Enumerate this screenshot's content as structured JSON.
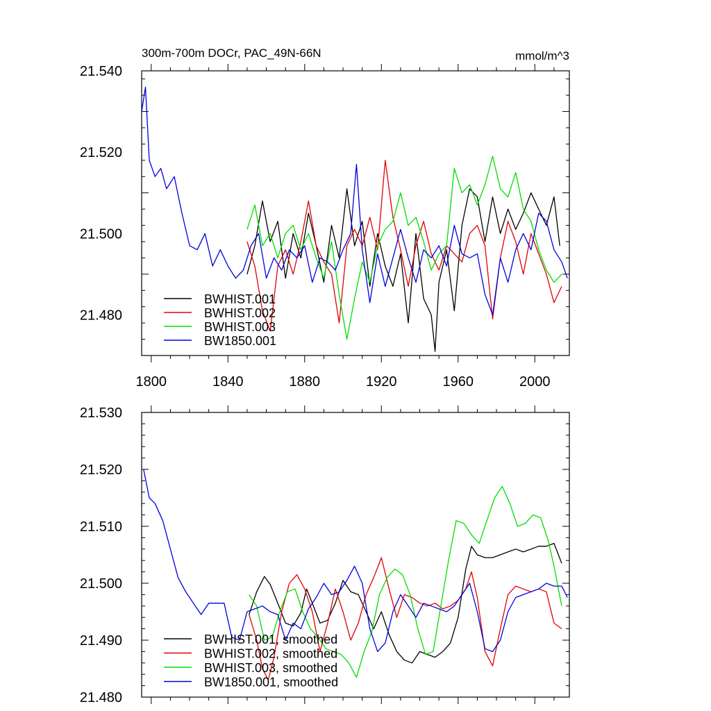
{
  "title_left": "300m-700m DOCr, PAC_49N-66N",
  "title_right": "mmol/m^3",
  "colors": {
    "black": "#000000",
    "red": "#e00000",
    "green": "#00dd00",
    "blue": "#0000dd"
  },
  "chart_data": [
    {
      "type": "line",
      "title": "300m-700m DOCr, PAC_49N-66N",
      "units": "mmol/m^3",
      "xlim": [
        1795,
        2018
      ],
      "ylim": [
        21.47,
        21.54
      ],
      "xticks": [
        "1800",
        "1840",
        "1880",
        "1920",
        "1960",
        "2000"
      ],
      "yticks": [
        "21.480",
        "21.500",
        "21.520",
        "21.540"
      ],
      "legend_position": "bottom-left",
      "series": [
        {
          "name": "BWHIST.001",
          "color": "#000000",
          "x": [
            1850,
            1854,
            1858,
            1862,
            1866,
            1870,
            1874,
            1878,
            1882,
            1886,
            1890,
            1894,
            1898,
            1902,
            1906,
            1910,
            1914,
            1918,
            1922,
            1926,
            1930,
            1934,
            1938,
            1942,
            1946,
            1948,
            1950,
            1954,
            1958,
            1962,
            1966,
            1970,
            1974,
            1978,
            1982,
            1986,
            1990,
            1994,
            1998,
            2002,
            2006,
            2010,
            2013
          ],
          "y": [
            21.49,
            21.497,
            21.508,
            21.498,
            21.503,
            21.489,
            21.5,
            21.494,
            21.505,
            21.497,
            21.488,
            21.502,
            21.494,
            21.511,
            21.497,
            21.503,
            21.487,
            21.5,
            21.492,
            21.487,
            21.495,
            21.478,
            21.5,
            21.484,
            21.48,
            21.471,
            21.488,
            21.496,
            21.481,
            21.502,
            21.511,
            21.509,
            21.498,
            21.509,
            21.5,
            21.506,
            21.501,
            21.505,
            21.51,
            21.506,
            21.502,
            21.509,
            21.497
          ]
        },
        {
          "name": "BWHIST.002",
          "color": "#e00000",
          "x": [
            1850,
            1854,
            1858,
            1862,
            1866,
            1870,
            1874,
            1878,
            1882,
            1886,
            1890,
            1894,
            1898,
            1902,
            1906,
            1910,
            1914,
            1918,
            1922,
            1926,
            1930,
            1934,
            1938,
            1942,
            1946,
            1950,
            1954,
            1958,
            1962,
            1966,
            1970,
            1974,
            1978,
            1982,
            1986,
            1990,
            1994,
            1998,
            2002,
            2006,
            2010,
            2014
          ],
          "y": [
            21.498,
            21.492,
            21.481,
            21.476,
            21.492,
            21.496,
            21.49,
            21.498,
            21.508,
            21.497,
            21.493,
            21.49,
            21.478,
            21.497,
            21.501,
            21.497,
            21.504,
            21.496,
            21.518,
            21.504,
            21.496,
            21.487,
            21.497,
            21.503,
            21.495,
            21.491,
            21.497,
            21.495,
            21.493,
            21.5,
            21.502,
            21.497,
            21.479,
            21.494,
            21.503,
            21.498,
            21.49,
            21.5,
            21.495,
            21.49,
            21.483,
            21.487
          ]
        },
        {
          "name": "BWHIST.003",
          "color": "#00dd00",
          "x": [
            1850,
            1854,
            1858,
            1862,
            1866,
            1870,
            1874,
            1878,
            1882,
            1886,
            1890,
            1894,
            1898,
            1902,
            1906,
            1910,
            1914,
            1918,
            1922,
            1926,
            1930,
            1934,
            1938,
            1942,
            1946,
            1950,
            1954,
            1958,
            1962,
            1966,
            1970,
            1974,
            1978,
            1982,
            1986,
            1990,
            1994,
            1998,
            2002,
            2006,
            2010,
            2014
          ],
          "y": [
            21.501,
            21.507,
            21.497,
            21.5,
            21.494,
            21.5,
            21.502,
            21.496,
            21.5,
            21.494,
            21.489,
            21.498,
            21.485,
            21.474,
            21.484,
            21.493,
            21.488,
            21.497,
            21.501,
            21.503,
            21.51,
            21.502,
            21.504,
            21.498,
            21.491,
            21.495,
            21.497,
            21.516,
            21.51,
            21.512,
            21.507,
            21.512,
            21.519,
            21.511,
            21.509,
            21.515,
            21.506,
            21.503,
            21.496,
            21.491,
            21.488,
            21.49
          ]
        },
        {
          "name": "BW1850.001",
          "color": "#0000dd",
          "x": [
            1795,
            1797,
            1799,
            1802,
            1805,
            1808,
            1812,
            1816,
            1820,
            1824,
            1828,
            1832,
            1836,
            1840,
            1844,
            1848,
            1852,
            1856,
            1860,
            1864,
            1868,
            1872,
            1876,
            1880,
            1884,
            1888,
            1892,
            1896,
            1900,
            1904,
            1907,
            1910,
            1914,
            1918,
            1922,
            1926,
            1930,
            1934,
            1938,
            1942,
            1946,
            1950,
            1954,
            1958,
            1962,
            1966,
            1970,
            1974,
            1978,
            1982,
            1986,
            1990,
            1994,
            1998,
            2002,
            2006,
            2010,
            2014,
            2017
          ],
          "y": [
            21.53,
            21.536,
            21.518,
            21.514,
            21.516,
            21.511,
            21.514,
            21.505,
            21.497,
            21.496,
            21.5,
            21.492,
            21.496,
            21.492,
            21.489,
            21.491,
            21.497,
            21.5,
            21.489,
            21.494,
            21.491,
            21.496,
            21.494,
            21.497,
            21.488,
            21.494,
            21.493,
            21.491,
            21.496,
            21.5,
            21.517,
            21.496,
            21.483,
            21.495,
            21.487,
            21.494,
            21.501,
            21.494,
            21.488,
            21.496,
            21.494,
            21.497,
            21.492,
            21.502,
            21.495,
            21.494,
            21.495,
            21.485,
            21.48,
            21.494,
            21.488,
            21.496,
            21.5,
            21.496,
            21.505,
            21.503,
            21.496,
            21.493,
            21.489
          ]
        }
      ]
    },
    {
      "type": "line",
      "xlim": [
        1795,
        2018
      ],
      "ylim": [
        21.48,
        21.53
      ],
      "yticks": [
        "21.480",
        "21.490",
        "21.500",
        "21.510",
        "21.520",
        "21.530"
      ],
      "legend_position": "bottom-left",
      "series": [
        {
          "name": "BWHIST.001, smoothed",
          "color": "#000000",
          "x": [
            1851,
            1855,
            1859,
            1862,
            1866,
            1870,
            1874,
            1878,
            1881,
            1884,
            1888,
            1892,
            1896,
            1900,
            1904,
            1908,
            1912,
            1916,
            1920,
            1924,
            1928,
            1932,
            1936,
            1940,
            1944,
            1948,
            1952,
            1956,
            1960,
            1964,
            1967,
            1970,
            1974,
            1978,
            1982,
            1986,
            1990,
            1994,
            1998,
            2002,
            2006,
            2010,
            2014
          ],
          "y": [
            21.4945,
            21.4985,
            21.5012,
            21.4998,
            21.4965,
            21.493,
            21.4925,
            21.4948,
            21.499,
            21.4965,
            21.493,
            21.4935,
            21.4965,
            21.5005,
            21.4985,
            21.498,
            21.495,
            21.492,
            21.495,
            21.491,
            21.488,
            21.4865,
            21.486,
            21.488,
            21.4875,
            21.487,
            21.488,
            21.4895,
            21.494,
            21.5025,
            21.5065,
            21.505,
            21.5045,
            21.5045,
            21.505,
            21.5055,
            21.506,
            21.5055,
            21.506,
            21.5065,
            21.5065,
            21.507,
            21.5035
          ]
        },
        {
          "name": "BWHIST.002, smoothed",
          "color": "#e00000",
          "x": [
            1851,
            1855,
            1858,
            1861,
            1864,
            1868,
            1872,
            1876,
            1880,
            1884,
            1888,
            1892,
            1896,
            1900,
            1904,
            1908,
            1912,
            1916,
            1920,
            1924,
            1928,
            1932,
            1936,
            1940,
            1944,
            1948,
            1952,
            1956,
            1960,
            1964,
            1967,
            1970,
            1974,
            1978,
            1982,
            1986,
            1990,
            1994,
            1998,
            2002,
            2006,
            2010,
            2014
          ],
          "y": [
            21.4945,
            21.49,
            21.485,
            21.483,
            21.487,
            21.495,
            21.5,
            21.5015,
            21.499,
            21.495,
            21.488,
            21.493,
            21.499,
            21.495,
            21.49,
            21.493,
            21.498,
            21.501,
            21.5045,
            21.499,
            21.494,
            21.498,
            21.4975,
            21.4965,
            21.496,
            21.4965,
            21.4955,
            21.496,
            21.497,
            21.499,
            21.502,
            21.4975,
            21.488,
            21.4855,
            21.492,
            21.498,
            21.4995,
            21.499,
            21.4985,
            21.499,
            21.4985,
            21.493,
            21.492
          ]
        },
        {
          "name": "BWHIST.003, smoothed",
          "color": "#00dd00",
          "x": [
            1851,
            1855,
            1859,
            1863,
            1867,
            1871,
            1875,
            1879,
            1883,
            1887,
            1891,
            1895,
            1899,
            1903,
            1907,
            1911,
            1915,
            1919,
            1923,
            1927,
            1931,
            1935,
            1939,
            1943,
            1947,
            1951,
            1955,
            1959,
            1963,
            1967,
            1971,
            1975,
            1979,
            1983,
            1987,
            1991,
            1995,
            1999,
            2003,
            2007,
            2010,
            2014
          ],
          "y": [
            21.498,
            21.496,
            21.49,
            21.4905,
            21.495,
            21.4985,
            21.499,
            21.495,
            21.492,
            21.4905,
            21.4885,
            21.488,
            21.4875,
            21.486,
            21.4835,
            21.488,
            21.4915,
            21.498,
            21.501,
            21.5025,
            21.5015,
            21.498,
            21.492,
            21.4875,
            21.488,
            21.496,
            21.504,
            21.511,
            21.5105,
            21.5085,
            21.507,
            21.511,
            21.515,
            21.517,
            21.514,
            21.51,
            21.5105,
            21.512,
            21.5115,
            21.5075,
            21.503,
            21.496
          ]
        },
        {
          "name": "BW1850.001, smoothed",
          "color": "#0000dd",
          "x": [
            1796,
            1799,
            1802,
            1806,
            1810,
            1814,
            1818,
            1822,
            1826,
            1830,
            1834,
            1838,
            1842,
            1846,
            1850,
            1854,
            1858,
            1862,
            1866,
            1870,
            1874,
            1878,
            1882,
            1886,
            1890,
            1894,
            1898,
            1902,
            1906,
            1910,
            1914,
            1918,
            1922,
            1926,
            1930,
            1934,
            1938,
            1942,
            1946,
            1950,
            1954,
            1958,
            1962,
            1966,
            1970,
            1974,
            1978,
            1982,
            1986,
            1990,
            1994,
            1998,
            2002,
            2006,
            2010,
            2014,
            2017
          ],
          "y": [
            21.52,
            21.515,
            21.514,
            21.511,
            21.506,
            21.501,
            21.4985,
            21.4965,
            21.4945,
            21.4965,
            21.4965,
            21.4965,
            21.4905,
            21.49,
            21.495,
            21.4955,
            21.496,
            21.495,
            21.4945,
            21.49,
            21.493,
            21.492,
            21.4955,
            21.4975,
            21.5,
            21.498,
            21.4985,
            21.5005,
            21.503,
            21.5,
            21.492,
            21.488,
            21.4895,
            21.495,
            21.498,
            21.496,
            21.494,
            21.4965,
            21.496,
            21.4955,
            21.495,
            21.496,
            21.498,
            21.5,
            21.495,
            21.4885,
            21.488,
            21.49,
            21.495,
            21.4975,
            21.498,
            21.4985,
            21.499,
            21.5,
            21.4995,
            21.4995,
            21.4975
          ]
        }
      ]
    }
  ]
}
